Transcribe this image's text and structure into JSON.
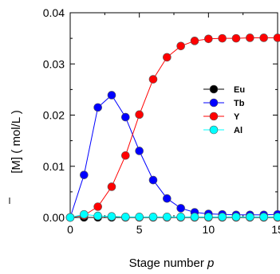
{
  "chart_data": {
    "type": "line",
    "title": "",
    "xlabel": "Stage number p",
    "xlabel_main": "Stage number ",
    "xlabel_italic": "p",
    "ylabel": "[M] ( mol/L )",
    "ylabel_symbol": "[M]",
    "ylabel_unit": " ( mol/L )",
    "xlim": [
      0,
      15
    ],
    "ylim": [
      0,
      0.04
    ],
    "xticks": [
      0,
      5,
      10,
      15
    ],
    "xtick_labels": [
      "0",
      "5",
      "10",
      "15"
    ],
    "yticks": [
      0,
      0.01,
      0.02,
      0.03,
      0.04
    ],
    "ytick_labels": [
      "0.00",
      "0.01",
      "0.02",
      "0.03",
      "0.04"
    ],
    "grid": false,
    "legend_position": "right",
    "x": [
      0,
      1,
      2,
      3,
      4,
      5,
      6,
      7,
      8,
      9,
      10,
      11,
      12,
      13,
      14,
      15
    ],
    "series": [
      {
        "name": "Eu",
        "color": "#000000",
        "values": [
          0,
          0,
          0,
          0,
          0,
          0,
          0,
          0,
          0,
          0,
          0,
          0,
          0,
          0,
          0,
          0
        ]
      },
      {
        "name": "Tb",
        "color": "#0000ff",
        "values": [
          0,
          0.0083,
          0.0215,
          0.0239,
          0.0196,
          0.013,
          0.0073,
          0.0037,
          0.0018,
          0.001,
          0.0007,
          0.0006,
          0.0005,
          0.0005,
          0.0005,
          0.0006
        ]
      },
      {
        "name": "Y",
        "color": "#ff0000",
        "values": [
          0,
          0.0004,
          0.0021,
          0.006,
          0.0121,
          0.0201,
          0.027,
          0.0313,
          0.0335,
          0.0345,
          0.0349,
          0.035,
          0.035,
          0.0351,
          0.0351,
          0.0351
        ]
      },
      {
        "name": "Al",
        "color": "#00ffff",
        "values": [
          0,
          0.0006,
          0.0003,
          0.0002,
          0.0001,
          0.0001,
          0.0001,
          0.0001,
          0.0001,
          0.0001,
          0.0001,
          0.0001,
          0.0001,
          0.0001,
          0.0001,
          0.0001
        ]
      }
    ]
  }
}
